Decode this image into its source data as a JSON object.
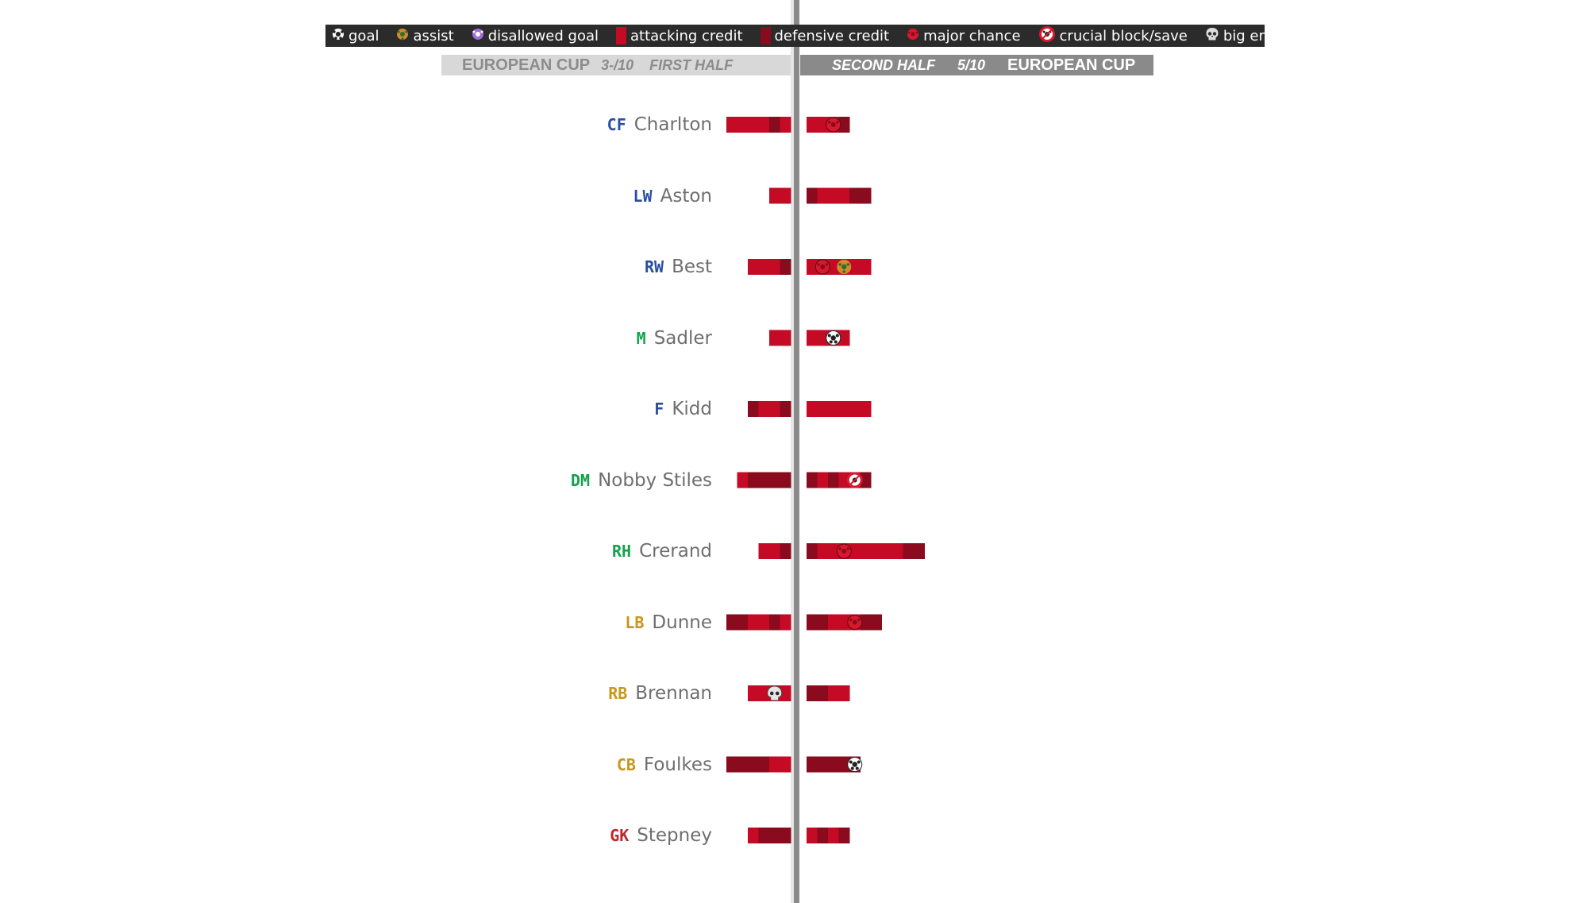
{
  "colors": {
    "attacking": "#c40a24",
    "defensive": "#8a0b1d",
    "major_chance": "#d8192d",
    "assist": "#d38a2c",
    "disallowed": "#a46ad8",
    "legend_bg": "#2b2b2b"
  },
  "legend": [
    {
      "icon": "goal-icon",
      "label": "goal"
    },
    {
      "icon": "assist-icon",
      "label": "assist"
    },
    {
      "icon": "disallowed-goal-icon",
      "label": "disallowed goal"
    },
    {
      "icon": "attacking-credit-swatch",
      "label": "attacking credit"
    },
    {
      "icon": "defensive-credit-swatch",
      "label": "defensive credit"
    },
    {
      "icon": "major-chance-icon",
      "label": "major chance"
    },
    {
      "icon": "crucial-block-save-icon",
      "label": "crucial block/save"
    },
    {
      "icon": "big-error-icon",
      "label": "big error"
    }
  ],
  "first_half": {
    "competition": "EUROPEAN CUP",
    "rating": "3-/10",
    "name": "FIRST HALF"
  },
  "second_half": {
    "name": "SECOND HALF",
    "rating": "5/10",
    "competition": "EUROPEAN CUP"
  },
  "chart_data": {
    "type": "bar",
    "unit": "credit segments per half (each segment is one credit: a = attacking, d = defensive; icons mark events)",
    "players": [
      {
        "pos": "CF",
        "pos_color": "blue",
        "name": "Charlton",
        "first_half": [
          "a",
          "a",
          "a",
          "a",
          "d",
          "a"
        ],
        "second_half": [
          "a",
          "a",
          "major_chance",
          "d"
        ]
      },
      {
        "pos": "LW",
        "pos_color": "blue",
        "name": "Aston",
        "first_half": [
          "a",
          "a"
        ],
        "second_half": [
          "d",
          "a",
          "a",
          "a",
          "d",
          "d"
        ]
      },
      {
        "pos": "RW",
        "pos_color": "blue",
        "name": "Best",
        "first_half": [
          "a",
          "a",
          "a",
          "d"
        ],
        "second_half": [
          "a",
          "major_chance",
          "a",
          "assist",
          "a",
          "a"
        ]
      },
      {
        "pos": "M",
        "pos_color": "green",
        "name": "Sadler",
        "first_half": [
          "a",
          "a"
        ],
        "second_half": [
          "a",
          "a",
          "goal",
          "a"
        ]
      },
      {
        "pos": "F",
        "pos_color": "blue",
        "name": "Kidd",
        "first_half": [
          "d",
          "a",
          "a",
          "d"
        ],
        "second_half": [
          "a",
          "a",
          "a",
          "a",
          "a",
          "a"
        ]
      },
      {
        "pos": "DM",
        "pos_color": "green",
        "name": "Nobby Stiles",
        "first_half": [
          "a",
          "d",
          "d",
          "d",
          "d"
        ],
        "second_half": [
          "d",
          "a",
          "d",
          "a",
          "crucial_block",
          "d"
        ]
      },
      {
        "pos": "RH",
        "pos_color": "green",
        "name": "Crerand",
        "first_half": [
          "a",
          "a",
          "d"
        ],
        "second_half": [
          "d",
          "a",
          "a",
          "major_chance",
          "a",
          "a",
          "a",
          "a",
          "a",
          "d",
          "d"
        ]
      },
      {
        "pos": "LB",
        "pos_color": "gold",
        "name": "Dunne",
        "first_half": [
          "d",
          "d",
          "a",
          "a",
          "d",
          "a"
        ],
        "second_half": [
          "d",
          "d",
          "a",
          "a",
          "major_chance",
          "d",
          "d"
        ]
      },
      {
        "pos": "RB",
        "pos_color": "gold",
        "name": "Brennan",
        "first_half": [
          "a",
          "a",
          "big_error",
          "a"
        ],
        "second_half": [
          "d",
          "d",
          "a",
          "a"
        ]
      },
      {
        "pos": "CB",
        "pos_color": "gold",
        "name": "Foulkes",
        "first_half": [
          "d",
          "d",
          "d",
          "d",
          "a",
          "a"
        ],
        "second_half": [
          "d",
          "d",
          "d",
          "d",
          "goal"
        ]
      },
      {
        "pos": "GK",
        "pos_color": "red",
        "name": "Stepney",
        "first_half": [
          "a",
          "d",
          "d",
          "d"
        ],
        "second_half": [
          "a",
          "d",
          "a",
          "d"
        ]
      }
    ]
  }
}
